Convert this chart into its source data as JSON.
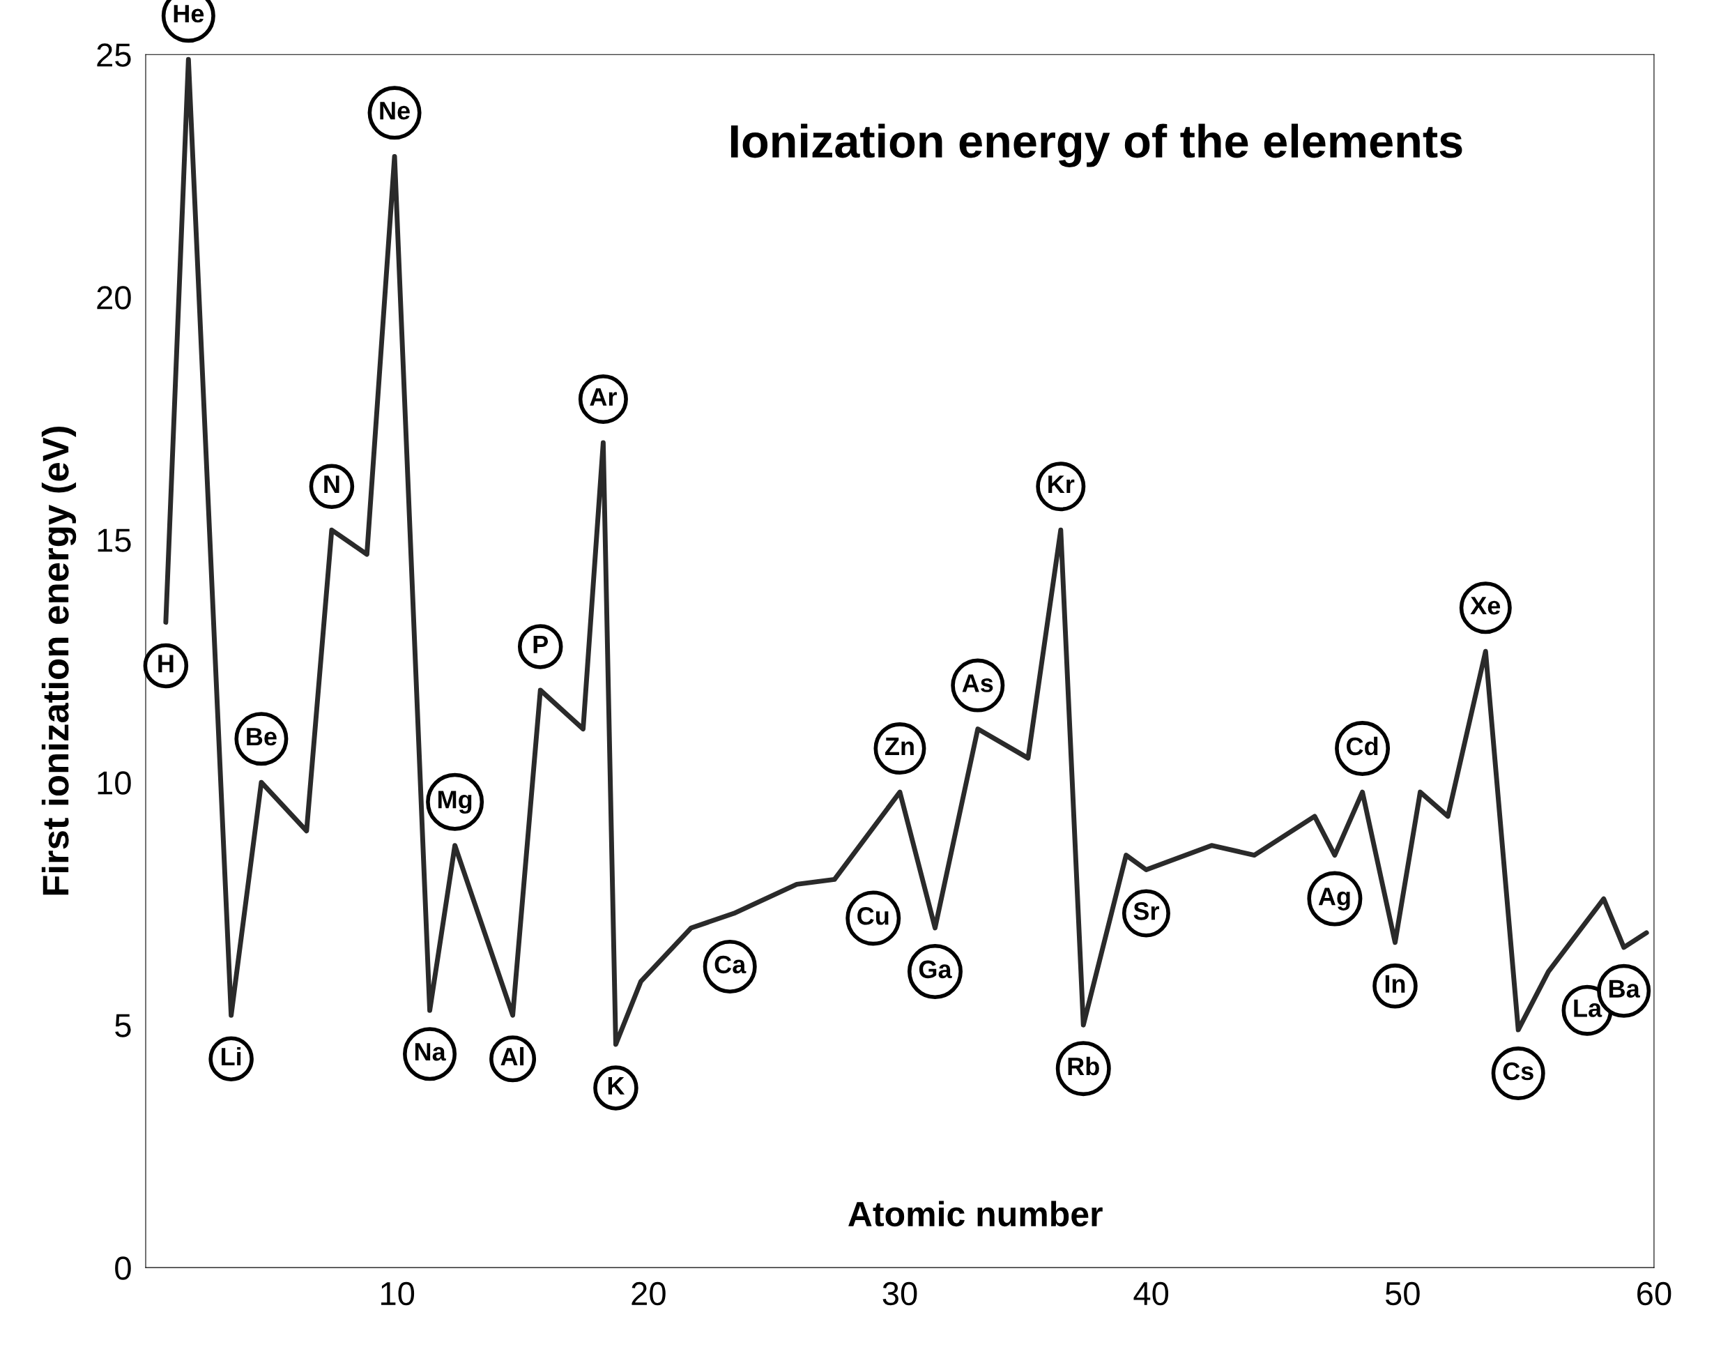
{
  "chart_data": {
    "type": "line",
    "title": "Ionization energy of the elements",
    "xlabel": "Atomic number",
    "ylabel": "First ionization energy (eV)",
    "x": [
      0.8,
      1.7,
      3.4,
      4.6,
      6.4,
      7.4,
      8.8,
      9.9,
      11.3,
      12.3,
      14.6,
      15.7,
      17.4,
      18.2,
      18.7,
      19.7,
      21.7,
      23.4,
      25.9,
      27.4,
      30.0,
      31.4,
      33.1,
      35.1,
      36.4,
      37.3,
      39.0,
      39.8,
      42.4,
      44.1,
      46.5,
      47.3,
      48.4,
      49.7,
      50.7,
      51.8,
      53.3,
      54.6,
      55.8,
      58.0,
      58.8,
      59.7
    ],
    "series": [
      {
        "color": "#2a2a2a",
        "values": [
          13.3,
          24.9,
          5.2,
          10.0,
          9.0,
          15.2,
          14.7,
          22.9,
          5.3,
          8.7,
          5.2,
          11.9,
          11.1,
          17.0,
          4.6,
          5.9,
          7.0,
          7.3,
          7.9,
          8.0,
          9.8,
          7.0,
          11.1,
          10.5,
          15.2,
          5.0,
          8.5,
          8.2,
          8.7,
          8.5,
          9.3,
          8.5,
          9.8,
          6.7,
          9.8,
          9.3,
          12.7,
          4.9,
          6.1,
          7.6,
          6.6,
          6.9
        ]
      }
    ],
    "xlim": [
      0,
      60
    ],
    "xticks": [
      10,
      20,
      30,
      40,
      50,
      60
    ],
    "ylim": [
      0,
      25
    ],
    "yticks": [
      0,
      5,
      10,
      15,
      20,
      25
    ],
    "annotations": [
      {
        "text": "He",
        "x": 1.7,
        "y": 24.9
      },
      {
        "text": "H",
        "x": 0.8,
        "y": 13.3
      },
      {
        "text": "Li",
        "x": 3.4,
        "y": 5.2
      },
      {
        "text": "Be",
        "x": 4.6,
        "y": 10.0
      },
      {
        "text": "N",
        "x": 7.4,
        "y": 15.2
      },
      {
        "text": "Ne",
        "x": 9.9,
        "y": 22.9
      },
      {
        "text": "Na",
        "x": 11.3,
        "y": 5.3
      },
      {
        "text": "Mg",
        "x": 12.3,
        "y": 8.7
      },
      {
        "text": "Al",
        "x": 14.6,
        "y": 5.2
      },
      {
        "text": "P",
        "x": 15.7,
        "y": 11.9
      },
      {
        "text": "Ar",
        "x": 18.2,
        "y": 17.0
      },
      {
        "text": "K",
        "x": 18.7,
        "y": 4.6
      },
      {
        "text": "Ca",
        "x": 21.7,
        "y": 7.0
      },
      {
        "text": "Cu",
        "x": 27.4,
        "y": 8.0
      },
      {
        "text": "Zn",
        "x": 30.0,
        "y": 9.8
      },
      {
        "text": "Ga",
        "x": 31.4,
        "y": 7.0
      },
      {
        "text": "As",
        "x": 33.1,
        "y": 11.1
      },
      {
        "text": "Kr",
        "x": 36.4,
        "y": 15.2
      },
      {
        "text": "Rb",
        "x": 37.3,
        "y": 5.0
      },
      {
        "text": "Sr",
        "x": 39.8,
        "y": 8.2
      },
      {
        "text": "Ag",
        "x": 47.3,
        "y": 8.5
      },
      {
        "text": "Cd",
        "x": 48.4,
        "y": 9.8
      },
      {
        "text": "In",
        "x": 49.7,
        "y": 6.7
      },
      {
        "text": "Xe",
        "x": 53.3,
        "y": 12.7
      },
      {
        "text": "Cs",
        "x": 54.6,
        "y": 4.9
      },
      {
        "text": "La",
        "x": 55.8,
        "y": 6.1
      },
      {
        "text": "Ba",
        "x": 58.8,
        "y": 6.6
      }
    ]
  }
}
